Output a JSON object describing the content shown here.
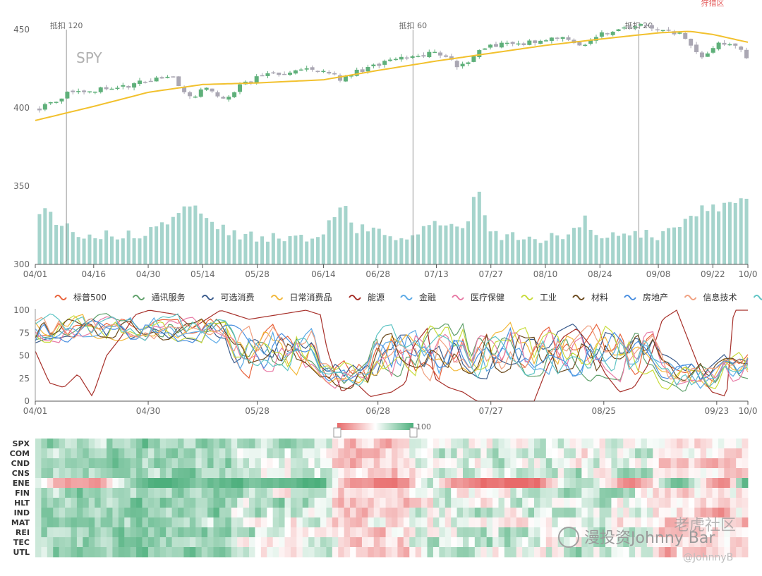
{
  "corner_label": "狩猎区",
  "watermark": {
    "main": "漫投资Johnny Bar",
    "brand": "老虎社区",
    "handle": "@JohnnyB"
  },
  "colors": {
    "up": "#5fb07a",
    "down": "#aaa7b3",
    "ma": "#f2c12e",
    "volume": "#a5d4cc",
    "heat_low": "#e86a6a",
    "heat_mid": "#ffffff",
    "heat_high": "#4caf7c"
  },
  "chart_data": [
    {
      "type": "candlestick",
      "title": "SPY",
      "dates": [
        "04/01",
        "04/16",
        "04/30",
        "05/14",
        "05/28",
        "06/14",
        "06/28",
        "07/13",
        "07/27",
        "08/10",
        "08/24",
        "09/08",
        "09/22",
        "10/0"
      ],
      "ylim": [
        300,
        460
      ],
      "yticks": [
        300,
        350,
        400,
        450
      ],
      "annotations": [
        {
          "label": "抵扣 120",
          "at": "04/09"
        },
        {
          "label": "抵扣 60",
          "at": "07/07"
        },
        {
          "label": "抵扣 20",
          "at": "09/03"
        }
      ],
      "ma_line": {
        "color": "#f2c12e"
      },
      "price_keypoints": [
        [
          "04/01",
          400
        ],
        [
          "04/09",
          410
        ],
        [
          "04/16",
          412
        ],
        [
          "04/22",
          413
        ],
        [
          "04/30",
          418
        ],
        [
          "05/05",
          421
        ],
        [
          "05/10",
          407
        ],
        [
          "05/14",
          412
        ],
        [
          "05/19",
          406
        ],
        [
          "05/24",
          416
        ],
        [
          "05/28",
          420
        ],
        [
          "06/04",
          423
        ],
        [
          "06/10",
          424
        ],
        [
          "06/14",
          425
        ],
        [
          "06/18",
          418
        ],
        [
          "06/22",
          423
        ],
        [
          "06/28",
          428
        ],
        [
          "07/07",
          433
        ],
        [
          "07/13",
          436
        ],
        [
          "07/19",
          426
        ],
        [
          "07/23",
          435
        ],
        [
          "07/27",
          440
        ],
        [
          "08/03",
          441
        ],
        [
          "08/10",
          444
        ],
        [
          "08/16",
          444
        ],
        [
          "08/20",
          440
        ],
        [
          "08/24",
          447
        ],
        [
          "08/30",
          451
        ],
        [
          "09/03",
          453
        ],
        [
          "09/08",
          451
        ],
        [
          "09/14",
          447
        ],
        [
          "09/20",
          432
        ],
        [
          "09/24",
          441
        ],
        [
          "09/28",
          440
        ],
        [
          "10/01",
          432
        ]
      ],
      "ma_keypoints": [
        [
          "04/01",
          392
        ],
        [
          "04/16",
          401
        ],
        [
          "04/30",
          410
        ],
        [
          "05/14",
          415
        ],
        [
          "05/28",
          416
        ],
        [
          "06/14",
          418
        ],
        [
          "06/28",
          424
        ],
        [
          "07/13",
          430
        ],
        [
          "07/27",
          435
        ],
        [
          "08/10",
          440
        ],
        [
          "08/24",
          444
        ],
        [
          "09/08",
          448
        ],
        [
          "09/16",
          449
        ],
        [
          "09/22",
          447
        ],
        [
          "10/01",
          442
        ]
      ],
      "volume_profile": [
        [
          0,
          0.55
        ],
        [
          0.05,
          0.3
        ],
        [
          0.1,
          0.3
        ],
        [
          0.14,
          0.3
        ],
        [
          0.18,
          0.42
        ],
        [
          0.21,
          0.6
        ],
        [
          0.23,
          0.52
        ],
        [
          0.25,
          0.35
        ],
        [
          0.29,
          0.28
        ],
        [
          0.34,
          0.27
        ],
        [
          0.39,
          0.25
        ],
        [
          0.41,
          0.38
        ],
        [
          0.43,
          0.58
        ],
        [
          0.45,
          0.35
        ],
        [
          0.5,
          0.25
        ],
        [
          0.55,
          0.35
        ],
        [
          0.57,
          0.42
        ],
        [
          0.6,
          0.3
        ],
        [
          0.62,
          0.75
        ],
        [
          0.64,
          0.3
        ],
        [
          0.7,
          0.25
        ],
        [
          0.74,
          0.28
        ],
        [
          0.77,
          0.45
        ],
        [
          0.8,
          0.25
        ],
        [
          0.84,
          0.3
        ],
        [
          0.88,
          0.28
        ],
        [
          0.92,
          0.5
        ],
        [
          0.95,
          0.6
        ],
        [
          0.97,
          0.55
        ],
        [
          1,
          0.65
        ]
      ]
    },
    {
      "type": "line",
      "ylim": [
        0,
        100
      ],
      "yticks": [
        0,
        25,
        50,
        75,
        100
      ],
      "dates": [
        "04/01",
        "04/30",
        "05/28",
        "06/28",
        "07/27",
        "08/25",
        "09/23",
        "10/0"
      ],
      "legend_placement": "top",
      "series": [
        {
          "name": "标普500",
          "color": "#e8623a"
        },
        {
          "name": "通讯服务",
          "color": "#5fa06a"
        },
        {
          "name": "可选消费",
          "color": "#3a5b8c"
        },
        {
          "name": "日常消费品",
          "color": "#f2b83a"
        },
        {
          "name": "能源",
          "color": "#a7302a"
        },
        {
          "name": "金融",
          "color": "#5aa9e6"
        },
        {
          "name": "医疗保健",
          "color": "#e87ba6"
        },
        {
          "name": "工业",
          "color": "#c8dc3c"
        },
        {
          "name": "材料",
          "color": "#6b4a1e"
        },
        {
          "name": "房地产",
          "color": "#4a8fe0"
        },
        {
          "name": "信息技术",
          "color": "#f0a080"
        },
        {
          "name": "公共事业",
          "color": "#5ec4c4"
        }
      ],
      "energy_keypoints": [
        [
          0,
          55
        ],
        [
          0.02,
          20
        ],
        [
          0.04,
          15
        ],
        [
          0.06,
          30
        ],
        [
          0.08,
          5
        ],
        [
          0.1,
          50
        ],
        [
          0.12,
          70
        ],
        [
          0.14,
          95
        ],
        [
          0.16,
          100
        ],
        [
          0.2,
          95
        ],
        [
          0.22,
          80
        ],
        [
          0.26,
          100
        ],
        [
          0.3,
          90
        ],
        [
          0.34,
          95
        ],
        [
          0.38,
          100
        ],
        [
          0.4,
          95
        ],
        [
          0.41,
          55
        ],
        [
          0.43,
          10
        ],
        [
          0.45,
          20
        ],
        [
          0.47,
          5
        ],
        [
          0.5,
          10
        ],
        [
          0.52,
          20
        ],
        [
          0.53,
          60
        ],
        [
          0.55,
          80
        ],
        [
          0.56,
          25
        ],
        [
          0.58,
          15
        ],
        [
          0.6,
          10
        ],
        [
          0.62,
          0
        ],
        [
          0.66,
          0
        ],
        [
          0.7,
          0
        ],
        [
          0.72,
          40
        ],
        [
          0.74,
          70
        ],
        [
          0.76,
          80
        ],
        [
          0.78,
          60
        ],
        [
          0.8,
          30
        ],
        [
          0.82,
          10
        ],
        [
          0.84,
          15
        ],
        [
          0.86,
          40
        ],
        [
          0.88,
          90
        ],
        [
          0.9,
          100
        ],
        [
          0.92,
          60
        ],
        [
          0.94,
          20
        ],
        [
          0.95,
          10
        ],
        [
          0.97,
          5
        ],
        [
          0.98,
          100
        ],
        [
          1,
          100
        ]
      ]
    },
    {
      "type": "heatmap",
      "rows": [
        "SPX",
        "COM",
        "CND",
        "CNS",
        "ENE",
        "FIN",
        "HLT",
        "IND",
        "MAT",
        "REI",
        "TEC",
        "UTL"
      ],
      "scale_max_label": "100",
      "columns": 120
    }
  ]
}
